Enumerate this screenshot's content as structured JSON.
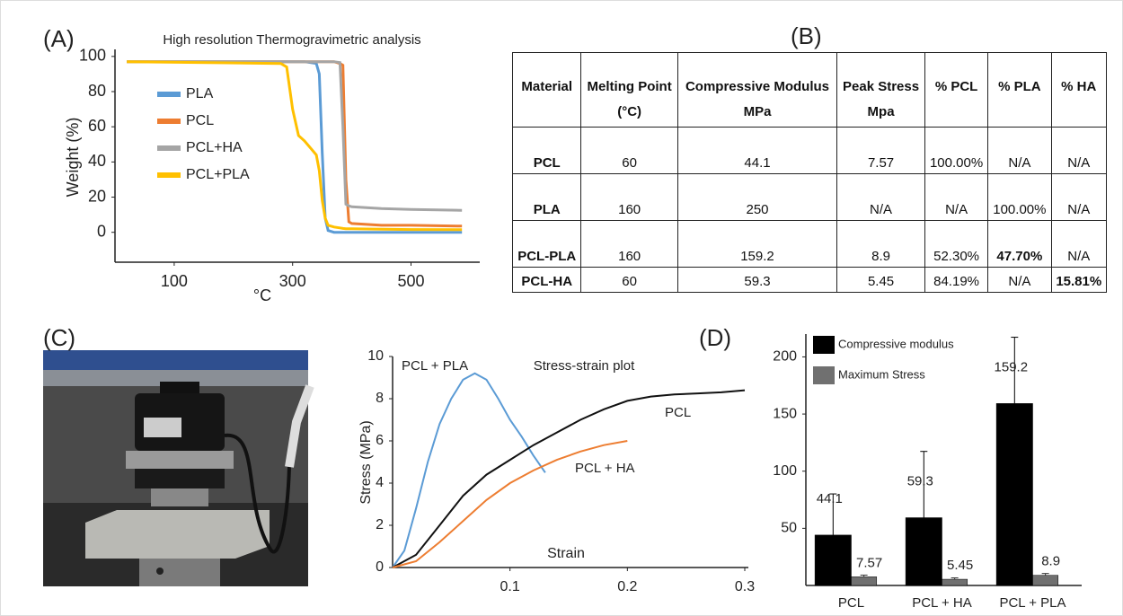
{
  "panel_labels": [
    "(A)",
    "(B)",
    "(C)",
    "(D)"
  ],
  "chart_data": [
    {
      "type": "line",
      "title": "High resolution Thermogravimetric analysis",
      "xlabel": "°C",
      "ylabel": "Weight (%)",
      "x": [
        20,
        280,
        290,
        300,
        310,
        320,
        330,
        340,
        345,
        350,
        355,
        360,
        370,
        380,
        385,
        390,
        395,
        400,
        450,
        500,
        586
      ],
      "series": [
        {
          "name": "PLA",
          "color": "#5b9bd5",
          "values": [
            97,
            97,
            97,
            97,
            97,
            97,
            96.5,
            96,
            90,
            45,
            8,
            1,
            0,
            0,
            0,
            0,
            0,
            0,
            0,
            0,
            0
          ]
        },
        {
          "name": "PCL",
          "color": "#ed7d31",
          "values": [
            97,
            97,
            97,
            97,
            97,
            97,
            97,
            97,
            97,
            97,
            97,
            97,
            97,
            96,
            95,
            30,
            6,
            5,
            4,
            4,
            3.5
          ]
        },
        {
          "name": "PCL+HA",
          "color": "#a5a5a5",
          "values": [
            97,
            97,
            97,
            97,
            97,
            97,
            97,
            97,
            97,
            97,
            97,
            97,
            97,
            96.5,
            60,
            16,
            15,
            14.5,
            13.5,
            13,
            12.5
          ]
        },
        {
          "name": "PCL+PLA",
          "color": "#ffc000",
          "values": [
            97,
            96,
            94,
            70,
            55,
            52,
            48,
            44,
            35,
            18,
            8,
            4,
            3,
            2.5,
            2.2,
            2,
            2,
            2,
            1.8,
            1.6,
            1.5
          ]
        }
      ],
      "xlim": [
        0,
        610
      ],
      "ylim": [
        -17,
        104
      ],
      "xticks": [
        100,
        300,
        500
      ],
      "yticks": [
        0,
        20,
        40,
        60,
        80,
        100
      ],
      "legend": "upper left"
    },
    {
      "type": "line",
      "title": "Stress-strain plot",
      "xlabel": "Strain",
      "ylabel": "Stress (MPa)",
      "annotations": [
        "PCL + PLA",
        "PCL",
        "PCL + HA"
      ],
      "series": [
        {
          "name": "PCL + PLA",
          "color": "#5b9bd5",
          "x": [
            0,
            0.01,
            0.02,
            0.03,
            0.04,
            0.05,
            0.06,
            0.07,
            0.08,
            0.09,
            0.1,
            0.11,
            0.12,
            0.13
          ],
          "values": [
            0,
            0.8,
            2.8,
            5,
            6.8,
            8,
            8.9,
            9.2,
            8.9,
            8,
            7,
            6.2,
            5.3,
            4.5
          ]
        },
        {
          "name": "PCL",
          "color": "#111111",
          "x": [
            0,
            0.02,
            0.04,
            0.06,
            0.08,
            0.1,
            0.12,
            0.14,
            0.16,
            0.18,
            0.2,
            0.22,
            0.24,
            0.26,
            0.28,
            0.3
          ],
          "values": [
            0,
            0.6,
            2,
            3.4,
            4.4,
            5.1,
            5.8,
            6.4,
            7,
            7.5,
            7.9,
            8.1,
            8.2,
            8.25,
            8.3,
            8.4
          ]
        },
        {
          "name": "PCL + HA",
          "color": "#ed7d31",
          "x": [
            0,
            0.02,
            0.04,
            0.06,
            0.08,
            0.1,
            0.12,
            0.14,
            0.16,
            0.18,
            0.2
          ],
          "values": [
            0,
            0.3,
            1.2,
            2.2,
            3.2,
            4,
            4.6,
            5.1,
            5.5,
            5.8,
            6
          ]
        }
      ],
      "xlim": [
        0,
        0.3
      ],
      "ylim": [
        0,
        10
      ],
      "xticks": [
        0.1,
        0.2,
        0.3
      ],
      "yticks": [
        0,
        2,
        4,
        6,
        8,
        10
      ]
    },
    {
      "type": "bar",
      "categories": [
        "PCL",
        "PCL + HA",
        "PCL + PLA"
      ],
      "series": [
        {
          "name": "Compressive modulus",
          "color": "#000000",
          "values": [
            44.1,
            59.3,
            159.2
          ],
          "errors": [
            36,
            58,
            58
          ]
        },
        {
          "name": "Maximum Stress",
          "color": "#707070",
          "values": [
            7.57,
            5.45,
            8.9
          ],
          "errors": [
            1.5,
            1.2,
            1.6
          ]
        }
      ],
      "ylim": [
        0,
        220
      ],
      "yticks": [
        50,
        100,
        150,
        200
      ],
      "legend": "upper left"
    }
  ],
  "table": {
    "header": [
      "Material",
      "Melting Point",
      "Compressive Modulus",
      "Peak Stress",
      "% PCL",
      "% PLA",
      "% HA"
    ],
    "units": [
      "(°C)",
      "MPa",
      "Mpa"
    ],
    "rows": [
      [
        "PCL",
        "60",
        "44.1",
        "7.57",
        "100.00%",
        "N/A",
        "N/A"
      ],
      [
        "PLA",
        "160",
        "250",
        "N/A",
        "N/A",
        "100.00%",
        "N/A"
      ],
      [
        "PCL-PLA",
        "160",
        "159.2",
        "8.9",
        "52.30%",
        "47.70%",
        "N/A"
      ],
      [
        "PCL-HA",
        "60",
        "59.3",
        "5.45",
        "84.19%",
        "N/A",
        "15.81%"
      ]
    ]
  }
}
